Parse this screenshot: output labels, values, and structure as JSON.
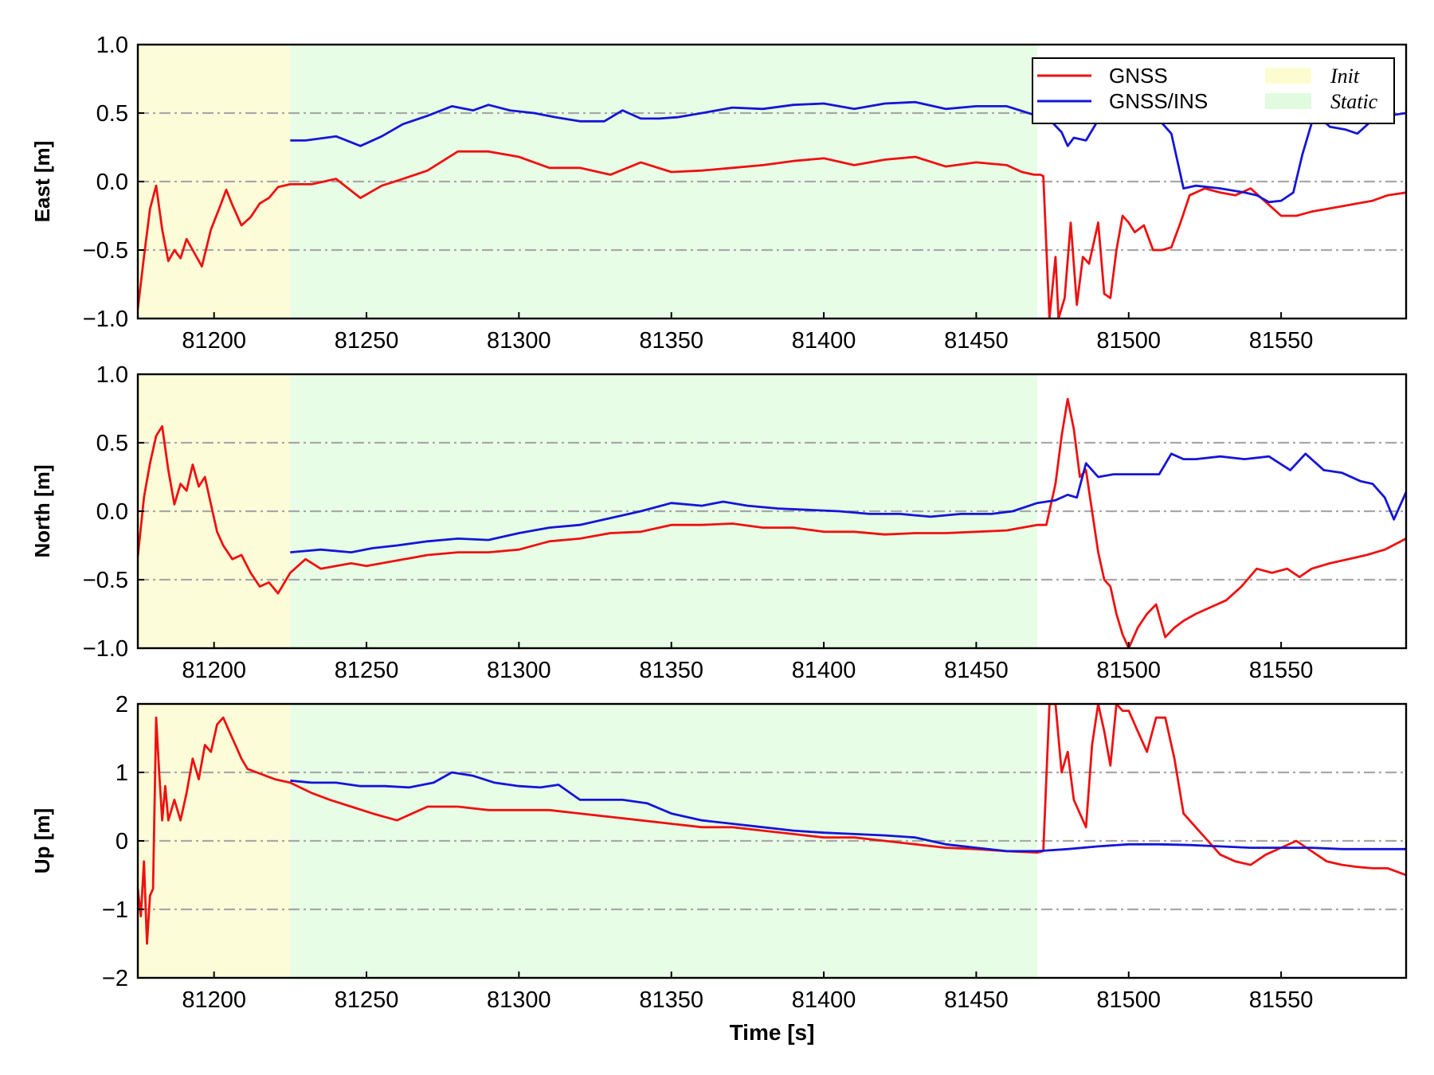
{
  "chart_data": {
    "type": "line",
    "subplot_count": 3,
    "xlabel": "Time [s]",
    "xlim": [
      81175,
      81591
    ],
    "xticks": [
      81200,
      81250,
      81300,
      81350,
      81400,
      81450,
      81500,
      81550
    ],
    "grid": "horizontal dash-dot at major y ticks",
    "regions": [
      {
        "name": "Init",
        "x_range": [
          81175,
          81225
        ],
        "color": "#fcfcd8"
      },
      {
        "name": "Static",
        "x_range": [
          81225,
          81470
        ],
        "color": "#e8fde6"
      }
    ],
    "legend": {
      "placement": "top-right of first subplot",
      "entries": [
        {
          "label": "GNSS",
          "kind": "line",
          "color": "#ee1111"
        },
        {
          "label": "GNSS/INS",
          "kind": "line",
          "color": "#1515d6"
        },
        {
          "label": "Init",
          "kind": "patch",
          "color": "#fcfcd0"
        },
        {
          "label": "Static",
          "kind": "patch",
          "color": "#e0fbe0"
        }
      ]
    },
    "subplots": [
      {
        "ylabel": "East [m]",
        "ylim": [
          -1.0,
          1.0
        ],
        "yticks": [
          -1.0,
          -0.5,
          0.0,
          0.5,
          1.0
        ],
        "ytick_labels": [
          "−1.0",
          "−0.5",
          "0.0",
          "0.5",
          "1.0"
        ],
        "series": [
          {
            "name": "GNSS",
            "color": "#ee1111",
            "x": [
              81175,
              81177,
              81179,
              81181,
              81183,
              81185,
              81187,
              81189,
              81191,
              81193,
              81196,
              81199,
              81202,
              81204,
              81206,
              81209,
              81212,
              81215,
              81218,
              81221,
              81225,
              81232,
              81240,
              81248,
              81255,
              81262,
              81270,
              81280,
              81290,
              81300,
              81310,
              81320,
              81330,
              81340,
              81350,
              81360,
              81370,
              81380,
              81390,
              81400,
              81410,
              81420,
              81430,
              81440,
              81450,
              81460,
              81465,
              81469,
              81471,
              81472,
              81474,
              81476,
              81477,
              81479,
              81481,
              81483,
              81485,
              81487,
              81490,
              81492,
              81494,
              81496,
              81498,
              81500,
              81502,
              81505,
              81508,
              81511,
              81514,
              81517,
              81520,
              81525,
              81530,
              81535,
              81540,
              81545,
              81550,
              81555,
              81560,
              81565,
              81570,
              81575,
              81580,
              81585,
              81591
            ],
            "y": [
              -0.93,
              -0.55,
              -0.2,
              -0.03,
              -0.35,
              -0.58,
              -0.5,
              -0.56,
              -0.42,
              -0.5,
              -0.62,
              -0.35,
              -0.18,
              -0.06,
              -0.17,
              -0.32,
              -0.26,
              -0.16,
              -0.12,
              -0.04,
              -0.02,
              -0.02,
              0.02,
              -0.12,
              -0.03,
              0.02,
              0.08,
              0.22,
              0.22,
              0.18,
              0.1,
              0.1,
              0.05,
              0.14,
              0.07,
              0.08,
              0.1,
              0.12,
              0.15,
              0.17,
              0.12,
              0.16,
              0.18,
              0.11,
              0.14,
              0.12,
              0.07,
              0.05,
              0.05,
              0.04,
              -1.0,
              -0.55,
              -1.0,
              -0.85,
              -0.3,
              -0.9,
              -0.55,
              -0.6,
              -0.3,
              -0.82,
              -0.85,
              -0.5,
              -0.25,
              -0.3,
              -0.37,
              -0.32,
              -0.5,
              -0.5,
              -0.48,
              -0.3,
              -0.1,
              -0.05,
              -0.08,
              -0.1,
              -0.05,
              -0.15,
              -0.25,
              -0.25,
              -0.22,
              -0.2,
              -0.18,
              -0.16,
              -0.14,
              -0.1,
              -0.08
            ]
          },
          {
            "name": "GNSS/INS",
            "color": "#1515d6",
            "x": [
              81225,
              81230,
              81240,
              81248,
              81255,
              81262,
              81270,
              81278,
              81285,
              81290,
              81297,
              81305,
              81312,
              81320,
              81328,
              81334,
              81340,
              81346,
              81352,
              81360,
              81370,
              81380,
              81390,
              81400,
              81410,
              81420,
              81430,
              81440,
              81450,
              81460,
              81470,
              81475,
              81478,
              81480,
              81482,
              81486,
              81490,
              81495,
              81500,
              81505,
              81510,
              81514,
              81518,
              81522,
              81530,
              81538,
              81542,
              81546,
              81550,
              81554,
              81557,
              81561,
              81566,
              81571,
              81575,
              81580,
              81585,
              81591
            ],
            "y": [
              0.3,
              0.3,
              0.33,
              0.26,
              0.33,
              0.42,
              0.48,
              0.55,
              0.52,
              0.56,
              0.52,
              0.5,
              0.47,
              0.44,
              0.44,
              0.52,
              0.46,
              0.46,
              0.47,
              0.5,
              0.54,
              0.53,
              0.56,
              0.57,
              0.53,
              0.57,
              0.58,
              0.53,
              0.55,
              0.55,
              0.48,
              0.43,
              0.36,
              0.26,
              0.32,
              0.3,
              0.45,
              0.48,
              0.5,
              0.48,
              0.45,
              0.35,
              -0.05,
              -0.03,
              -0.05,
              -0.08,
              -0.1,
              -0.15,
              -0.14,
              -0.08,
              0.2,
              0.5,
              0.4,
              0.38,
              0.35,
              0.45,
              0.48,
              0.5
            ]
          }
        ]
      },
      {
        "ylabel": "North [m]",
        "ylim": [
          -1.0,
          1.0
        ],
        "yticks": [
          -1.0,
          -0.5,
          0.0,
          0.5,
          1.0
        ],
        "ytick_labels": [
          "−1.0",
          "−0.5",
          "0.0",
          "0.5",
          "1.0"
        ],
        "series": [
          {
            "name": "GNSS",
            "color": "#ee1111",
            "x": [
              81175,
              81177,
              81179,
              81181,
              81183,
              81185,
              81187,
              81189,
              81191,
              81193,
              81195,
              81197,
              81199,
              81201,
              81203,
              81206,
              81209,
              81212,
              81215,
              81218,
              81221,
              81225,
              81230,
              81235,
              81240,
              81245,
              81250,
              81260,
              81270,
              81280,
              81290,
              81300,
              81310,
              81320,
              81330,
              81340,
              81350,
              81360,
              81370,
              81380,
              81390,
              81400,
              81410,
              81420,
              81430,
              81440,
              81450,
              81460,
              81470,
              81473,
              81476,
              81478,
              81480,
              81482,
              81484,
              81486,
              81488,
              81490,
              81492,
              81494,
              81496,
              81498,
              81500,
              81503,
              81506,
              81509,
              81512,
              81515,
              81518,
              81522,
              81527,
              81532,
              81537,
              81542,
              81547,
              81552,
              81556,
              81560,
              81566,
              81572,
              81578,
              81584,
              81591
            ],
            "y": [
              -0.33,
              0.1,
              0.35,
              0.55,
              0.62,
              0.3,
              0.05,
              0.2,
              0.15,
              0.34,
              0.18,
              0.25,
              0.05,
              -0.15,
              -0.25,
              -0.35,
              -0.32,
              -0.45,
              -0.55,
              -0.52,
              -0.6,
              -0.45,
              -0.35,
              -0.42,
              -0.4,
              -0.38,
              -0.4,
              -0.36,
              -0.32,
              -0.3,
              -0.3,
              -0.28,
              -0.22,
              -0.2,
              -0.16,
              -0.15,
              -0.1,
              -0.1,
              -0.09,
              -0.12,
              -0.12,
              -0.15,
              -0.15,
              -0.17,
              -0.16,
              -0.16,
              -0.15,
              -0.14,
              -0.1,
              -0.1,
              0.2,
              0.55,
              0.82,
              0.6,
              0.25,
              0.3,
              0.0,
              -0.3,
              -0.5,
              -0.55,
              -0.75,
              -0.9,
              -1.0,
              -0.85,
              -0.75,
              -0.68,
              -0.92,
              -0.85,
              -0.8,
              -0.75,
              -0.7,
              -0.65,
              -0.55,
              -0.42,
              -0.45,
              -0.42,
              -0.48,
              -0.42,
              -0.38,
              -0.35,
              -0.32,
              -0.28,
              -0.2
            ]
          },
          {
            "name": "GNSS/INS",
            "color": "#1515d6",
            "x": [
              81225,
              81235,
              81245,
              81252,
              81260,
              81270,
              81280,
              81290,
              81300,
              81310,
              81320,
              81330,
              81340,
              81350,
              81360,
              81367,
              81375,
              81385,
              81395,
              81405,
              81415,
              81425,
              81435,
              81445,
              81455,
              81462,
              81470,
              81476,
              81480,
              81483,
              81486,
              81490,
              81495,
              81500,
              81505,
              81510,
              81514,
              81518,
              81522,
              81530,
              81538,
              81546,
              81553,
              81558,
              81564,
              81570,
              81576,
              81580,
              81584,
              81587,
              81591
            ],
            "y": [
              -0.3,
              -0.28,
              -0.3,
              -0.27,
              -0.25,
              -0.22,
              -0.2,
              -0.21,
              -0.16,
              -0.12,
              -0.1,
              -0.05,
              0.0,
              0.06,
              0.04,
              0.07,
              0.04,
              0.02,
              0.01,
              0.0,
              -0.02,
              -0.02,
              -0.04,
              -0.02,
              -0.02,
              0.0,
              0.06,
              0.08,
              0.12,
              0.1,
              0.35,
              0.25,
              0.27,
              0.27,
              0.27,
              0.27,
              0.42,
              0.38,
              0.38,
              0.4,
              0.38,
              0.4,
              0.3,
              0.42,
              0.3,
              0.28,
              0.22,
              0.2,
              0.1,
              -0.06,
              0.14
            ]
          }
        ]
      },
      {
        "ylabel": "Up [m]",
        "ylim": [
          -2,
          2
        ],
        "yticks": [
          -2,
          -1,
          0,
          1,
          2
        ],
        "ytick_labels": [
          "−2",
          "−1",
          "0",
          "1",
          "2"
        ],
        "series": [
          {
            "name": "GNSS",
            "color": "#ee1111",
            "x": [
              81175,
              81176,
              81177,
              81178,
              81179,
              81180,
              81181,
              81182,
              81183,
              81184,
              81185,
              81187,
              81189,
              81191,
              81193,
              81195,
              81197,
              81199,
              81201,
              81203,
              81205,
              81207,
              81209,
              81211,
              81214,
              81217,
              81220,
              81225,
              81232,
              81238,
              81245,
              81252,
              81260,
              81270,
              81280,
              81290,
              81300,
              81310,
              81320,
              81330,
              81340,
              81350,
              81360,
              81370,
              81380,
              81390,
              81400,
              81410,
              81420,
              81430,
              81440,
              81450,
              81460,
              81470,
              81472,
              81474,
              81476,
              81478,
              81480,
              81482,
              81484,
              81486,
              81488,
              81490,
              81492,
              81494,
              81496,
              81498,
              81500,
              81503,
              81506,
              81509,
              81512,
              81515,
              81518,
              81522,
              81526,
              81530,
              81535,
              81540,
              81545,
              81550,
              81555,
              81560,
              81565,
              81570,
              81575,
              81580,
              81585,
              81591
            ],
            "y": [
              -0.7,
              -1.1,
              -0.3,
              -1.5,
              -0.8,
              -0.7,
              1.8,
              1.0,
              0.3,
              0.8,
              0.3,
              0.6,
              0.3,
              0.7,
              1.2,
              0.9,
              1.4,
              1.3,
              1.7,
              1.8,
              1.6,
              1.4,
              1.2,
              1.05,
              1.0,
              0.95,
              0.9,
              0.85,
              0.7,
              0.6,
              0.5,
              0.4,
              0.3,
              0.5,
              0.5,
              0.45,
              0.45,
              0.45,
              0.4,
              0.35,
              0.3,
              0.25,
              0.2,
              0.2,
              0.15,
              0.1,
              0.05,
              0.05,
              0.0,
              -0.05,
              -0.1,
              -0.12,
              -0.15,
              -0.17,
              -0.15,
              2.0,
              2.0,
              1.0,
              1.3,
              0.6,
              0.4,
              0.2,
              1.4,
              2.0,
              1.6,
              1.1,
              2.0,
              1.9,
              1.9,
              1.6,
              1.3,
              1.8,
              1.8,
              1.2,
              0.4,
              0.2,
              0.0,
              -0.2,
              -0.3,
              -0.35,
              -0.2,
              -0.1,
              0.0,
              -0.15,
              -0.3,
              -0.35,
              -0.38,
              -0.4,
              -0.4,
              -0.5
            ]
          },
          {
            "name": "GNSS/INS",
            "color": "#1515d6",
            "x": [
              81225,
              81232,
              81240,
              81248,
              81256,
              81264,
              81272,
              81278,
              81285,
              81292,
              81300,
              81307,
              81313,
              81320,
              81327,
              81334,
              81342,
              81350,
              81360,
              81370,
              81380,
              81390,
              81400,
              81410,
              81420,
              81430,
              81440,
              81450,
              81460,
              81470,
              81480,
              81490,
              81500,
              81510,
              81520,
              81530,
              81540,
              81550,
              81560,
              81570,
              81580,
              81591
            ],
            "y": [
              0.88,
              0.85,
              0.85,
              0.8,
              0.8,
              0.78,
              0.85,
              1.0,
              0.95,
              0.85,
              0.8,
              0.78,
              0.82,
              0.6,
              0.6,
              0.6,
              0.55,
              0.4,
              0.3,
              0.25,
              0.2,
              0.15,
              0.12,
              0.1,
              0.08,
              0.05,
              -0.05,
              -0.1,
              -0.15,
              -0.15,
              -0.12,
              -0.08,
              -0.05,
              -0.05,
              -0.06,
              -0.08,
              -0.1,
              -0.1,
              -0.1,
              -0.12,
              -0.12,
              -0.12
            ]
          }
        ]
      }
    ]
  }
}
